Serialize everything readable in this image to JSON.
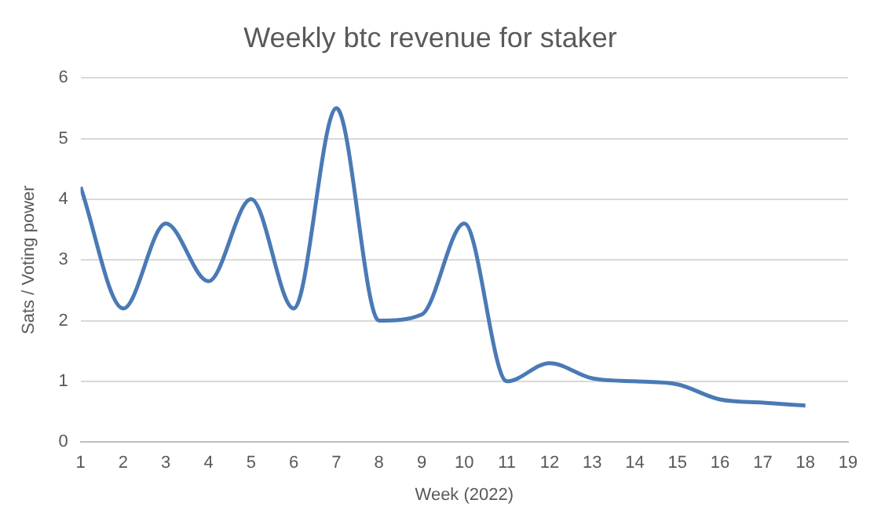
{
  "chart_data": {
    "type": "line",
    "title": "Weekly btc revenue for staker",
    "xlabel": "Week (2022)",
    "ylabel": "Sats / Voting power",
    "x": [
      1,
      2,
      3,
      4,
      5,
      6,
      7,
      8,
      9,
      10,
      11,
      12,
      13,
      14,
      15,
      16,
      17,
      18
    ],
    "series": [
      {
        "color": "#4a7ab5",
        "values": [
          4.2,
          2.2,
          3.6,
          2.65,
          4.0,
          2.2,
          5.5,
          2.0,
          2.1,
          3.6,
          1.0,
          1.3,
          1.05,
          1.0,
          0.95,
          0.7,
          0.65,
          0.6
        ]
      }
    ],
    "xlim": [
      1,
      19
    ],
    "xticks": [
      1,
      2,
      3,
      4,
      5,
      6,
      7,
      8,
      9,
      10,
      11,
      12,
      13,
      14,
      15,
      16,
      17,
      18,
      19
    ],
    "ylim": [
      0,
      6
    ],
    "yticks": [
      0,
      1,
      2,
      3,
      4,
      5,
      6
    ],
    "grid": "y",
    "legend": false,
    "marker": "none",
    "line_style": "solid"
  }
}
